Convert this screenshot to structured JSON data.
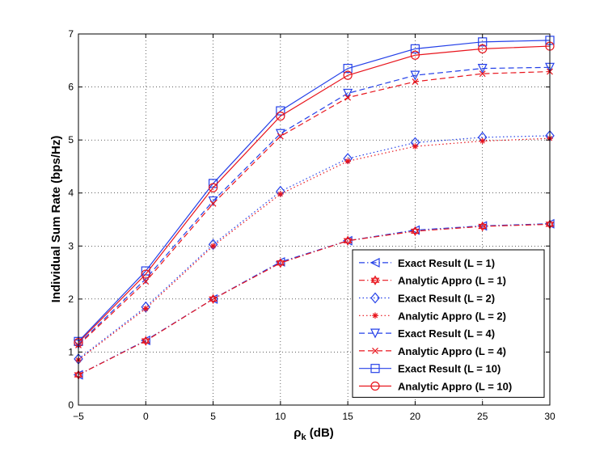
{
  "chart_data": {
    "type": "line",
    "title": "",
    "xlabel_main": "ρ",
    "xlabel_sub": "k",
    "xlabel_unit": " (dB)",
    "ylabel": "Individual Sum Rate (bps/Hz)",
    "xlim": [
      -5,
      30
    ],
    "ylim": [
      0,
      7
    ],
    "xticks": [
      -5,
      0,
      5,
      10,
      15,
      20,
      25,
      30
    ],
    "yticks": [
      0,
      1,
      2,
      3,
      4,
      5,
      6,
      7
    ],
    "xtick_labels": [
      "−5",
      "0",
      "5",
      "10",
      "15",
      "20",
      "25",
      "30"
    ],
    "ytick_labels": [
      "0",
      "1",
      "2",
      "3",
      "4",
      "5",
      "6",
      "7"
    ],
    "grid": true,
    "legend_position": "bottom-right",
    "x": [
      -5,
      0,
      5,
      10,
      15,
      20,
      25,
      30
    ],
    "series": [
      {
        "name": "Exact Result (L = 1)",
        "color": "#2440e8",
        "dash": "dashdot",
        "marker": "triangle-left",
        "values": [
          0.57,
          1.22,
          2.0,
          2.7,
          3.1,
          3.3,
          3.38,
          3.42
        ]
      },
      {
        "name": "Analytic Appro (L = 1)",
        "color": "#e8141c",
        "dash": "dashdot",
        "marker": "hexagram",
        "values": [
          0.57,
          1.21,
          2.0,
          2.68,
          3.1,
          3.28,
          3.37,
          3.41
        ]
      },
      {
        "name": "Exact Result (L = 2)",
        "color": "#2440e8",
        "dash": "dotted",
        "marker": "diamond",
        "values": [
          0.87,
          1.85,
          3.03,
          4.03,
          4.65,
          4.95,
          5.05,
          5.08
        ]
      },
      {
        "name": "Analytic Appro (L = 2)",
        "color": "#e8141c",
        "dash": "dotted",
        "marker": "asterisk",
        "values": [
          0.85,
          1.82,
          3.0,
          3.98,
          4.6,
          4.88,
          4.98,
          5.03
        ]
      },
      {
        "name": "Exact Result (L = 4)",
        "color": "#2440e8",
        "dash": "dashed",
        "marker": "triangle-down",
        "values": [
          1.15,
          2.38,
          3.85,
          5.12,
          5.88,
          6.22,
          6.35,
          6.37
        ]
      },
      {
        "name": "Analytic Appro (L = 4)",
        "color": "#e8141c",
        "dash": "dashed",
        "marker": "x",
        "values": [
          1.13,
          2.33,
          3.8,
          5.07,
          5.8,
          6.1,
          6.25,
          6.29
        ]
      },
      {
        "name": "Exact Result (L = 10)",
        "color": "#2440e8",
        "dash": "solid",
        "marker": "square",
        "values": [
          1.2,
          2.53,
          4.18,
          5.55,
          6.35,
          6.72,
          6.85,
          6.88
        ]
      },
      {
        "name": "Analytic Appro (L = 10)",
        "color": "#e8141c",
        "dash": "solid",
        "marker": "circle",
        "values": [
          1.18,
          2.47,
          4.1,
          5.45,
          6.22,
          6.6,
          6.72,
          6.77
        ]
      }
    ]
  }
}
